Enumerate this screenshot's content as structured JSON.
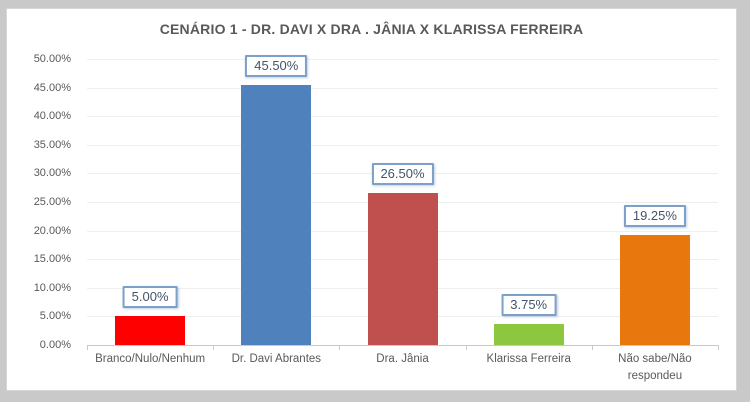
{
  "chart_data": {
    "type": "bar",
    "title": "CENÁRIO 1 - DR. DAVI X DRA . JÂNIA X KLARISSA FERREIRA",
    "categories": [
      "Branco/Nulo/Nenhum",
      "Dr. Davi Abrantes",
      "Dra. Jânia",
      "Klarissa Ferreira",
      "Não sabe/Não respondeu"
    ],
    "values": [
      5.0,
      45.5,
      26.5,
      3.75,
      19.25
    ],
    "value_labels": [
      "5.00%",
      "45.50%",
      "26.50%",
      "3.75%",
      "19.25%"
    ],
    "bar_colors": [
      "#ff0000",
      "#4f81bd",
      "#c0504d",
      "#8dc63f",
      "#e8770e"
    ],
    "xlabel": "",
    "ylabel": "",
    "ylim": [
      0,
      50
    ],
    "y_ticks": [
      "50.00%",
      "45.00%",
      "40.00%",
      "35.00%",
      "30.00%",
      "25.00%",
      "20.00%",
      "15.00%",
      "10.00%",
      "5.00%",
      "0.00%"
    ],
    "grid": true,
    "legend": false,
    "colors": {
      "title_text": "#595959",
      "axis_text": "#595959",
      "value_label_text": "#44546a",
      "value_label_border": "#7da0c9",
      "gridline": "#efefef",
      "frame_background": "#ffffff",
      "outer_background": "#c9c9c9"
    }
  }
}
